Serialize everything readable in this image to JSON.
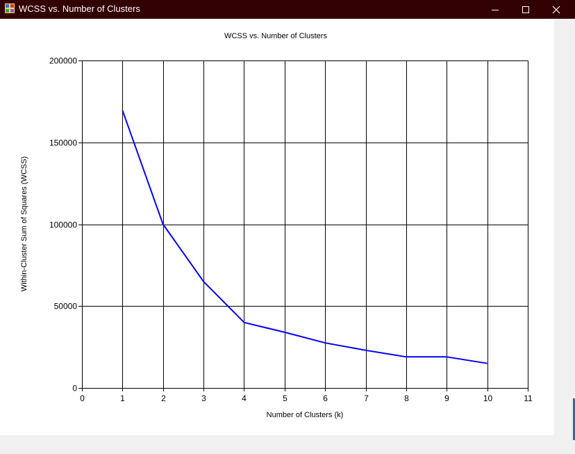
{
  "window": {
    "title": "WCSS vs. Number of Clusters"
  },
  "chart_data": {
    "type": "line",
    "title": "WCSS vs. Number of Clusters",
    "xlabel": "Number of Clusters (k)",
    "ylabel": "Within-Cluster Sum of Squares (WCSS)",
    "xlim": [
      0,
      11
    ],
    "ylim": [
      0,
      200000
    ],
    "x_ticks": [
      0,
      1,
      2,
      3,
      4,
      5,
      6,
      7,
      8,
      9,
      10,
      11
    ],
    "y_ticks": [
      0,
      50000,
      100000,
      150000,
      200000
    ],
    "grid": true,
    "legend": "none",
    "series": [
      {
        "color": "#0000ff",
        "x": [
          1,
          2,
          3,
          4,
          5,
          6,
          7,
          8,
          9,
          10
        ],
        "y": [
          169500,
          100000,
          65000,
          40000,
          34000,
          27500,
          23000,
          19000,
          19000,
          15000
        ]
      }
    ]
  }
}
